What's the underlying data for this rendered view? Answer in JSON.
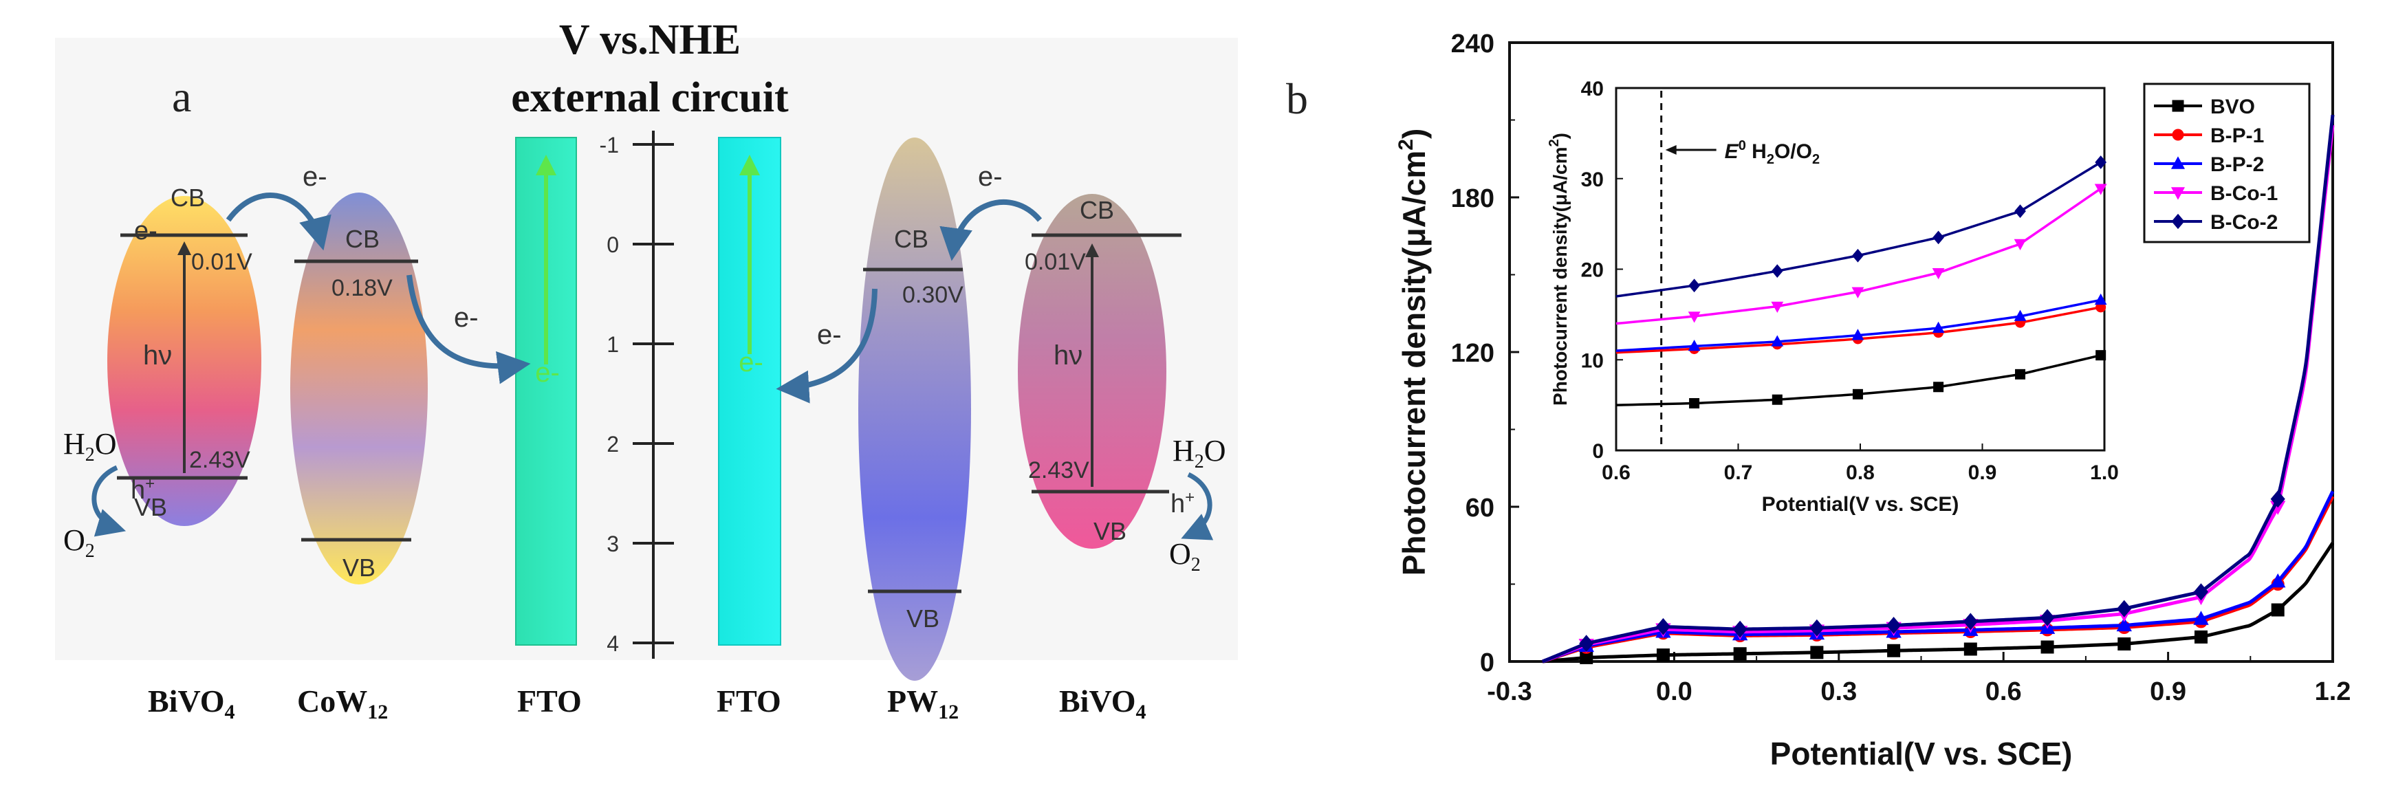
{
  "panel_a": {
    "label": "a",
    "title_line1": "V vs.NHE",
    "title_line2": "external circuit",
    "axis_ticks": [
      "-1",
      "0",
      "1",
      "2",
      "3",
      "4"
    ],
    "left": {
      "bivo4_label": "BiVO",
      "bivo4_sub": "4",
      "cow12_label": "CoW",
      "cow12_sub": "12",
      "fto_label": "FTO",
      "cb": "CB",
      "vb": "VB",
      "cb_value_bivo4": "0.01V",
      "vb_value_bivo4": "2.43V",
      "cb_value_cow12": "0.18V",
      "hv": "hν",
      "electron": "e-",
      "hole": "h",
      "hole_sup": "+",
      "h2o": "H",
      "h2o_sub": "2",
      "h2o_tail": "O",
      "o2": "O",
      "o2_sub": "2"
    },
    "right": {
      "fto_label": "FTO",
      "pw12_label": "PW",
      "pw12_sub": "12",
      "bivo4_label": "BiVO",
      "bivo4_sub": "4",
      "cb": "CB",
      "vb": "VB",
      "cb_value_pw12": "0.30V",
      "cb_value_bivo4": "0.01V",
      "vb_value_bivo4": "2.43V",
      "hv": "hν",
      "electron": "e-",
      "hole": "h",
      "hole_sup": "+",
      "h2o": "H",
      "h2o_sub": "2",
      "h2o_tail": "O",
      "o2": "O",
      "o2_sub": "2"
    }
  },
  "panel_b": {
    "label": "b"
  },
  "chart_data": [
    {
      "type": "line",
      "title": "",
      "xlabel": "Potential(V vs. SCE)",
      "ylabel_main": "Photocurrent density(μA/cm",
      "ylabel_sup": "2",
      "ylabel_tail": ")",
      "xlim": [
        -0.3,
        1.2
      ],
      "ylim": [
        0,
        240
      ],
      "xticks": [
        -0.3,
        0.0,
        0.3,
        0.6,
        0.9,
        1.2
      ],
      "xtick_labels": [
        "-0.3",
        "0.0",
        "0.3",
        "0.6",
        "0.9",
        "1.2"
      ],
      "yticks": [
        0,
        60,
        120,
        180,
        240
      ],
      "ytick_labels": [
        "0",
        "60",
        "120",
        "180",
        "240"
      ],
      "legend_position": "top-right",
      "series": [
        {
          "name": "BVO",
          "color": "#000000",
          "marker": "square",
          "x": [
            -0.24,
            -0.16,
            -0.02,
            0.12,
            0.26,
            0.4,
            0.54,
            0.68,
            0.82,
            0.96,
            1.05,
            1.1,
            1.15,
            1.2
          ],
          "y": [
            0,
            1.5,
            2.5,
            3,
            3.5,
            4.2,
            4.8,
            5.6,
            6.8,
            9.5,
            14,
            20,
            30,
            46
          ],
          "markers_x": [
            -0.16,
            -0.02,
            0.12,
            0.26,
            0.4,
            0.54,
            0.68,
            0.82,
            0.96,
            1.1
          ]
        },
        {
          "name": "B-P-1",
          "color": "#ff0000",
          "marker": "circle",
          "x": [
            -0.24,
            -0.16,
            -0.02,
            0.12,
            0.26,
            0.4,
            0.54,
            0.68,
            0.82,
            0.96,
            1.05,
            1.1,
            1.15,
            1.2
          ],
          "y": [
            0,
            5.5,
            11,
            10,
            10.3,
            11,
            11.6,
            12.3,
            13.2,
            15.5,
            22,
            30,
            43,
            64
          ],
          "markers_x": [
            -0.16,
            -0.02,
            0.12,
            0.26,
            0.4,
            0.54,
            0.68,
            0.82,
            0.96,
            1.1
          ]
        },
        {
          "name": "B-P-2",
          "color": "#0000ff",
          "marker": "triangle",
          "x": [
            -0.24,
            -0.16,
            -0.02,
            0.12,
            0.26,
            0.4,
            0.54,
            0.68,
            0.82,
            0.96,
            1.05,
            1.1,
            1.15,
            1.2
          ],
          "y": [
            0,
            6,
            11.5,
            10.5,
            10.8,
            11.5,
            12.2,
            13,
            14,
            16.5,
            23,
            31,
            44,
            66
          ],
          "markers_x": [
            -0.16,
            -0.02,
            0.12,
            0.26,
            0.4,
            0.54,
            0.68,
            0.82,
            0.96,
            1.1
          ]
        },
        {
          "name": "B-Co-1",
          "color": "#ff00ff",
          "marker": "triangle-down",
          "x": [
            -0.24,
            -0.16,
            -0.02,
            0.12,
            0.26,
            0.4,
            0.54,
            0.68,
            0.82,
            0.96,
            1.05,
            1.1,
            1.15,
            1.2
          ],
          "y": [
            0,
            6.5,
            12.5,
            11.5,
            12,
            13,
            14.2,
            15.8,
            18.5,
            25,
            40,
            60,
            110,
            208
          ],
          "markers_x": [
            -0.16,
            -0.02,
            0.12,
            0.26,
            0.4,
            0.54,
            0.68,
            0.82,
            0.96,
            1.1
          ]
        },
        {
          "name": "B-Co-2",
          "color": "#000080",
          "marker": "diamond",
          "x": [
            -0.24,
            -0.16,
            -0.02,
            0.12,
            0.26,
            0.4,
            0.54,
            0.68,
            0.82,
            0.96,
            1.05,
            1.1,
            1.15,
            1.2
          ],
          "y": [
            0,
            7,
            13.5,
            12.5,
            13,
            14,
            15.5,
            17,
            20.5,
            27,
            42,
            63,
            113,
            212
          ],
          "markers_x": [
            -0.16,
            -0.02,
            0.12,
            0.26,
            0.4,
            0.54,
            0.68,
            0.82,
            0.96,
            1.1
          ]
        }
      ]
    },
    {
      "type": "line",
      "title": "",
      "xlabel": "Potential(V vs. SCE)",
      "ylabel_main": "Photocurrent density(μA/cm",
      "ylabel_sup": "2",
      "ylabel_tail": ")",
      "xlim": [
        0.6,
        1.0
      ],
      "ylim": [
        0,
        40
      ],
      "xticks": [
        0.6,
        0.7,
        0.8,
        0.9,
        1.0
      ],
      "xtick_labels": [
        "0.6",
        "0.7",
        "0.8",
        "0.9",
        "1.0"
      ],
      "yticks": [
        0,
        10,
        20,
        30,
        40
      ],
      "ytick_labels": [
        "0",
        "10",
        "20",
        "30",
        "40"
      ],
      "annotation": {
        "label_main": "E",
        "label_sup": "0",
        "label_tail": " H",
        "label_sub": "2",
        "label_tail2": "O/O",
        "label_sub2": "2",
        "x": 0.637
      },
      "series": [
        {
          "name": "BVO",
          "color": "#000000",
          "marker": "square",
          "x": [
            0.6,
            0.664,
            0.732,
            0.798,
            0.864,
            0.931,
            0.997
          ],
          "y": [
            5,
            5.2,
            5.6,
            6.2,
            7.0,
            8.4,
            10.5
          ]
        },
        {
          "name": "B-P-1",
          "color": "#ff0000",
          "marker": "circle",
          "x": [
            0.6,
            0.664,
            0.732,
            0.798,
            0.864,
            0.931,
            0.997
          ],
          "y": [
            10.8,
            11.2,
            11.7,
            12.3,
            13.0,
            14.1,
            15.8
          ]
        },
        {
          "name": "B-P-2",
          "color": "#0000ff",
          "marker": "triangle",
          "x": [
            0.6,
            0.664,
            0.732,
            0.798,
            0.864,
            0.931,
            0.997
          ],
          "y": [
            11.0,
            11.5,
            12.0,
            12.7,
            13.5,
            14.8,
            16.6
          ]
        },
        {
          "name": "B-Co-1",
          "color": "#ff00ff",
          "marker": "triangle-down",
          "x": [
            0.6,
            0.664,
            0.732,
            0.798,
            0.864,
            0.931,
            0.997
          ],
          "y": [
            14,
            14.8,
            15.9,
            17.5,
            19.6,
            22.8,
            28.9
          ]
        },
        {
          "name": "B-Co-2",
          "color": "#000080",
          "marker": "diamond",
          "x": [
            0.6,
            0.664,
            0.732,
            0.798,
            0.864,
            0.931,
            0.997
          ],
          "y": [
            17,
            18.2,
            19.8,
            21.5,
            23.5,
            26.4,
            31.8
          ]
        }
      ]
    }
  ]
}
